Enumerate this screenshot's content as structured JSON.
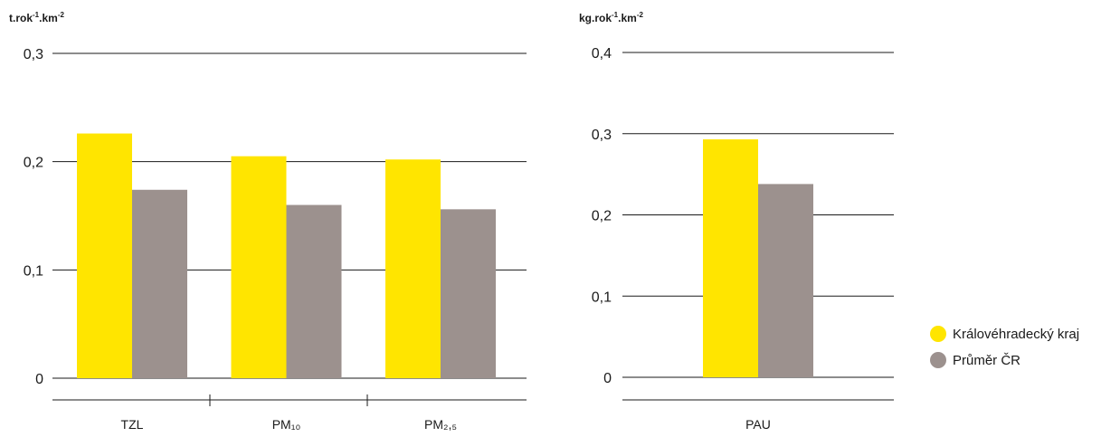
{
  "colors": {
    "kraj": "#FFE500",
    "prumer": "#9C918E",
    "grid": "#1a1a1a"
  },
  "chart_data": [
    {
      "type": "bar",
      "unit": "t.rok",
      "unit_sup1": "-1",
      "unit_mid": ".km",
      "unit_sup2": "-2",
      "categories": [
        "TZL",
        "PM₁₀",
        "PM₂,₅"
      ],
      "ylim": [
        0,
        0.3
      ],
      "yticks": [
        0,
        0.1,
        0.2,
        0.3
      ],
      "ytick_labels": [
        "0",
        "0,1",
        "0,2",
        "0,3"
      ],
      "grid": true,
      "series": [
        {
          "name": "Královéhradecký kraj",
          "values": [
            0.226,
            0.205,
            0.202
          ]
        },
        {
          "name": "Průměr ČR",
          "values": [
            0.174,
            0.16,
            0.156
          ]
        }
      ]
    },
    {
      "type": "bar",
      "unit": "kg.rok",
      "unit_sup1": "-1",
      "unit_mid": ".km",
      "unit_sup2": "-2",
      "categories": [
        "PAU"
      ],
      "ylim": [
        0,
        0.4
      ],
      "yticks": [
        0,
        0.1,
        0.2,
        0.3,
        0.4
      ],
      "ytick_labels": [
        "0",
        "0,1",
        "0,2",
        "0,3",
        "0,4"
      ],
      "grid": true,
      "series": [
        {
          "name": "Královéhradecký kraj",
          "values": [
            0.293
          ]
        },
        {
          "name": "Průměr ČR",
          "values": [
            0.238
          ]
        }
      ]
    }
  ],
  "legend": {
    "placement": "right",
    "items": [
      {
        "label": "Královéhradecký kraj",
        "color": "#FFE500"
      },
      {
        "label": "Průměr ČR",
        "color": "#9C918E"
      }
    ]
  }
}
